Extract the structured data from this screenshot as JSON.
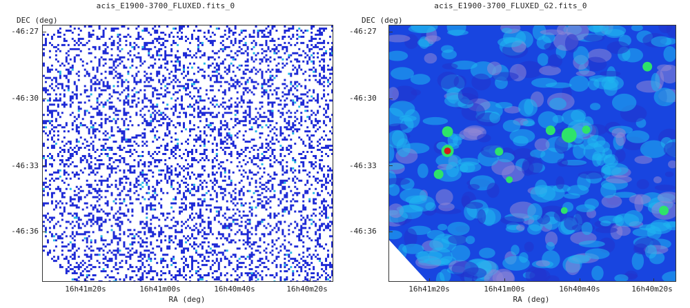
{
  "panels": [
    {
      "title": "acis_E1900-3700_FLUXED.fits_0",
      "y_axis_label": "DEC (deg)",
      "x_axis_label": "RA (deg)",
      "y_ticks": [
        "-46:27",
        "-46:30",
        "-46:33",
        "-46:36"
      ],
      "x_ticks": [
        "16h41m20s",
        "16h41m00s",
        "16h40m40s",
        "16h40m20s"
      ]
    },
    {
      "title": "acis_E1900-3700_FLUXED_G2.fits_0",
      "y_axis_label": "DEC (deg)",
      "x_axis_label": "RA (deg)",
      "y_ticks": [
        "-46:27",
        "-46:30",
        "-46:33",
        "-46:36"
      ],
      "x_ticks": [
        "16h41m20s",
        "16h41m00s",
        "16h40m40s",
        "16h40m20s"
      ]
    }
  ],
  "colors": {
    "raw_pixel": "#1f2bd6",
    "raw_pixel_bright": "#27b7e6",
    "smooth_low": "#1845e0",
    "smooth_mid": "#1fb6f0",
    "smooth_faint": "#8f86d6",
    "source_green": "#2ee36a",
    "source_red": "#d61a1a"
  }
}
